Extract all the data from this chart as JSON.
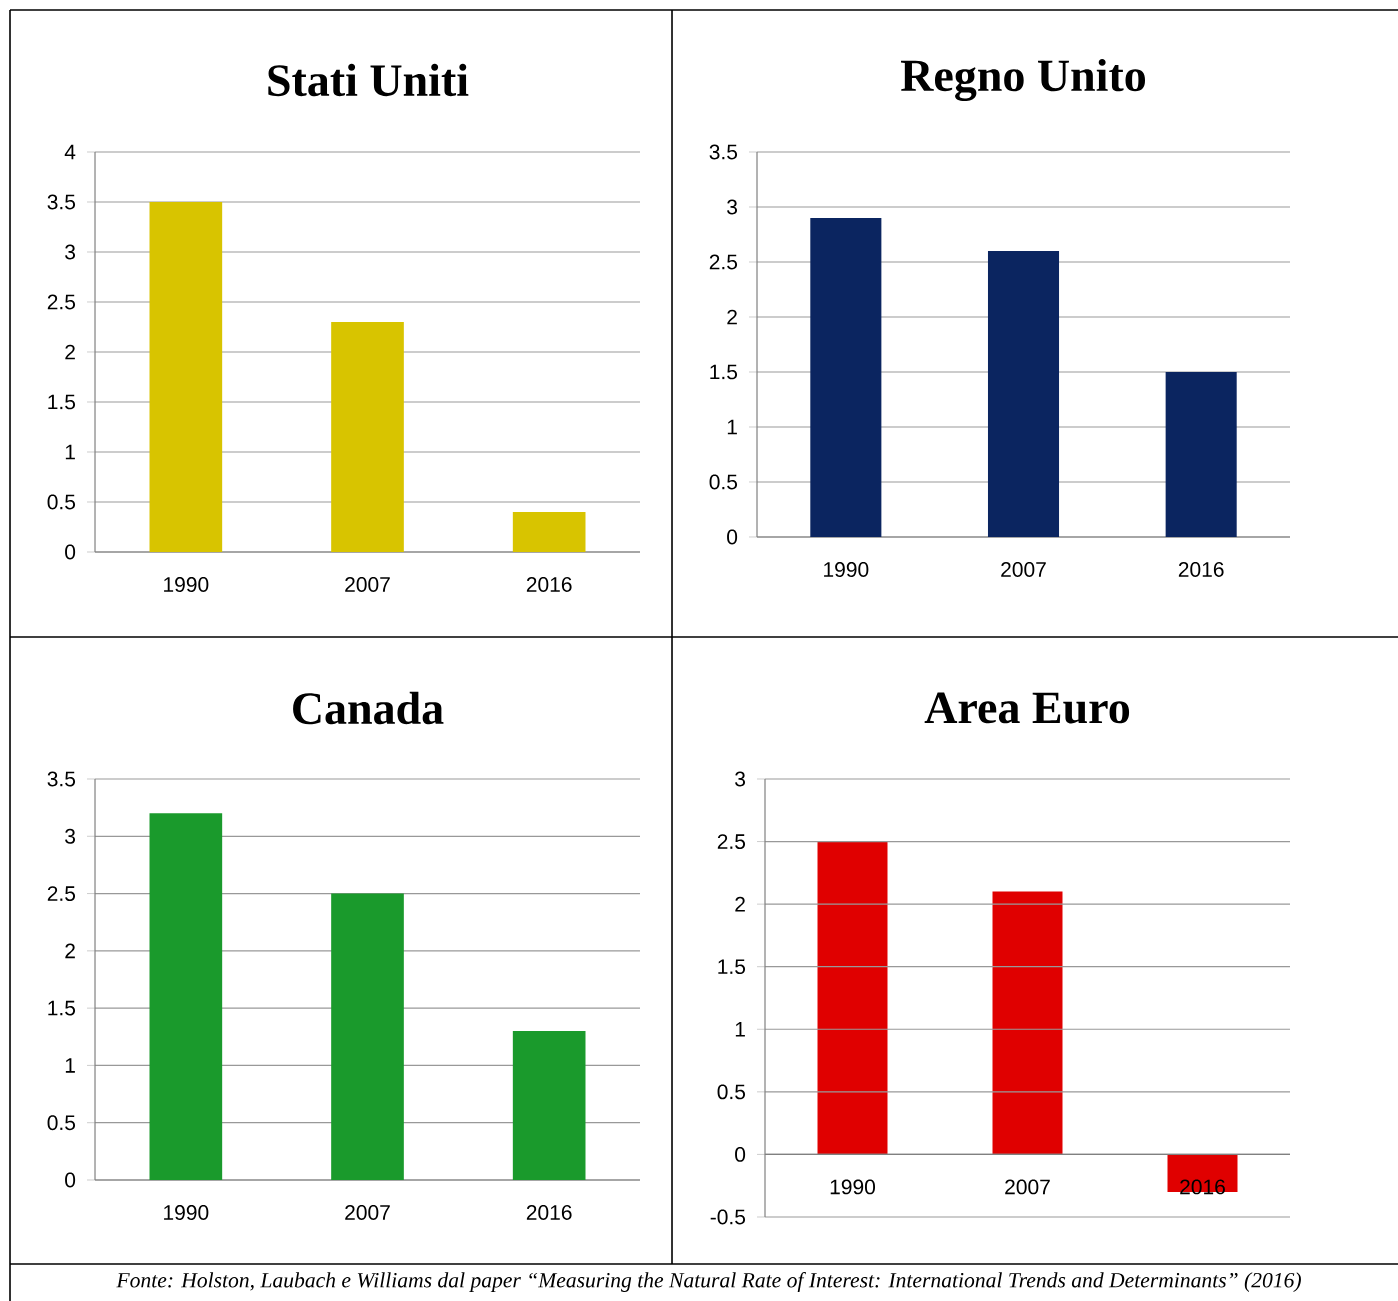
{
  "chart_data": [
    {
      "type": "bar",
      "title": "Stati Uniti",
      "categories": [
        "1990",
        "2007",
        "2016"
      ],
      "values": [
        3.5,
        2.3,
        0.4
      ],
      "color": "#d8c400",
      "ylim": [
        0,
        4
      ],
      "yticks": [
        0,
        0.5,
        1,
        1.5,
        2,
        2.5,
        3,
        3.5,
        4
      ],
      "grid": "y"
    },
    {
      "type": "bar",
      "title": "Regno Unito",
      "categories": [
        "1990",
        "2007",
        "2016"
      ],
      "values": [
        2.9,
        2.6,
        1.5
      ],
      "color": "#0b2560",
      "ylim": [
        0,
        3.5
      ],
      "yticks": [
        0,
        0.5,
        1,
        1.5,
        2,
        2.5,
        3,
        3.5
      ],
      "grid": "y"
    },
    {
      "type": "bar",
      "title": "Canada",
      "categories": [
        "1990",
        "2007",
        "2016"
      ],
      "values": [
        3.2,
        2.5,
        1.3
      ],
      "color": "#1a9a2c",
      "ylim": [
        0,
        3.5
      ],
      "yticks": [
        0,
        0.5,
        1,
        1.5,
        2,
        2.5,
        3,
        3.5
      ],
      "grid": "y"
    },
    {
      "type": "bar",
      "title": "Area Euro",
      "categories": [
        "1990",
        "2007",
        "2016"
      ],
      "values": [
        2.5,
        2.1,
        -0.3
      ],
      "color": "#e00000",
      "ylim": [
        -0.5,
        3
      ],
      "yticks": [
        -0.5,
        0,
        0.5,
        1,
        1.5,
        2,
        2.5,
        3
      ],
      "grid": "y",
      "annotations": [
        "Fonte: Holston, Laubach e Williams dal paper “Measuring the Natural Rate of Interest: International Trends and Determinants” (2016)"
      ]
    }
  ]
}
